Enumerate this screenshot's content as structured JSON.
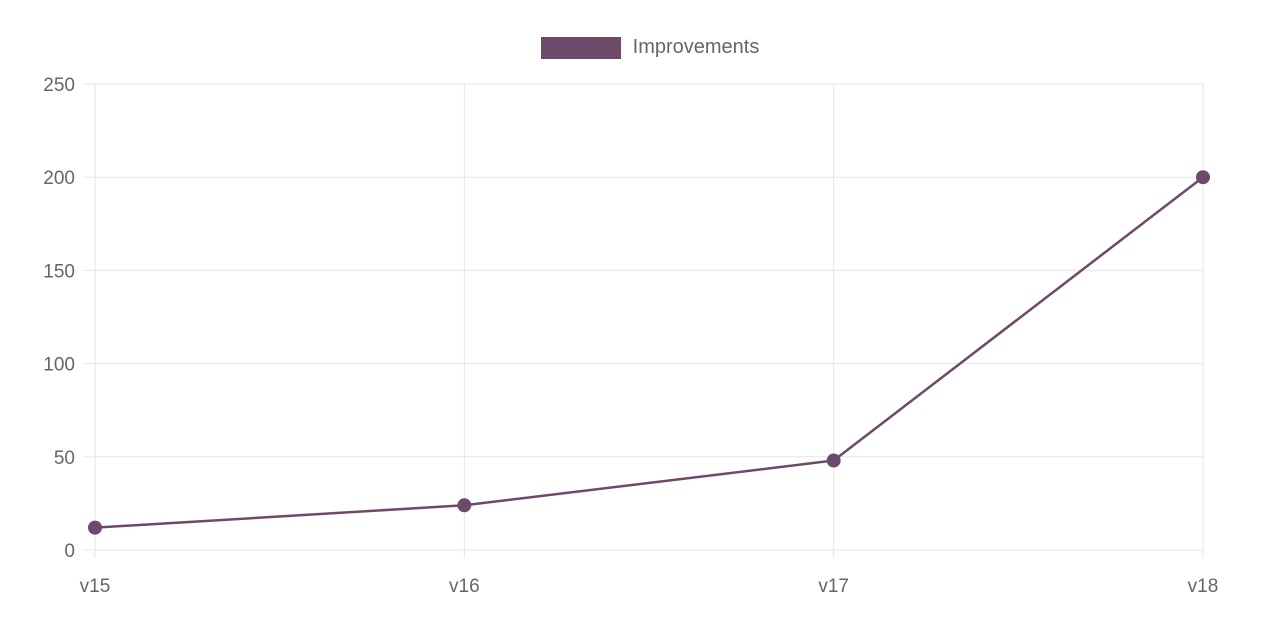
{
  "chart_data": {
    "type": "line",
    "title": "",
    "xlabel": "",
    "ylabel": "",
    "categories": [
      "v15",
      "v16",
      "v17",
      "v18"
    ],
    "series": [
      {
        "name": "Improvements",
        "values": [
          12,
          24,
          48,
          200
        ]
      }
    ],
    "ylim": [
      0,
      250
    ],
    "ytick_step": 50,
    "yticks": [
      0,
      50,
      100,
      150,
      200,
      250
    ],
    "grid": true,
    "legend_position": "top",
    "colors": {
      "line": "#6d4a69",
      "point": "#6d4a69",
      "legend_swatch": "#6d4a69",
      "grid": "#e6e6e6",
      "axis_text": "#666666",
      "legend_text": "#666666",
      "background": "#ffffff"
    }
  }
}
